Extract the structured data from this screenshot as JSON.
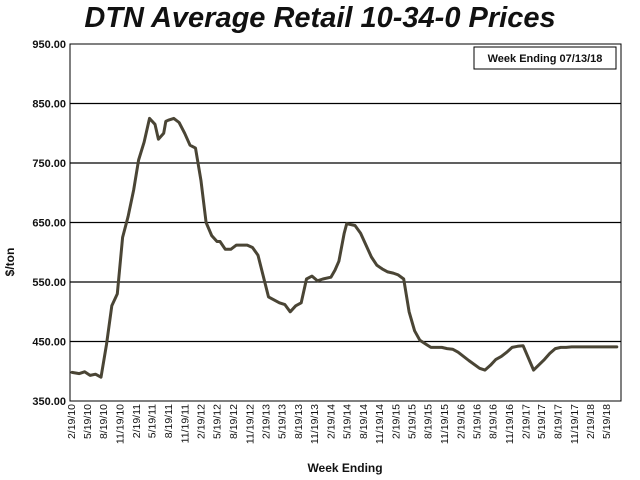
{
  "chart_data": {
    "type": "line",
    "title": "DTN Average Retail 10-34-0 Prices",
    "xlabel": "Week Ending",
    "ylabel": "$/ton",
    "annotation": "Week Ending 07/13/18",
    "ylim": [
      350,
      950
    ],
    "yticks": [
      "950.00",
      "850.00",
      "750.00",
      "650.00",
      "550.00",
      "450.00",
      "350.00"
    ],
    "grid": "horizontal",
    "colors": {
      "line": "#4a4535",
      "grid": "#000000"
    },
    "xticks": [
      "2/19/10",
      "5/19/10",
      "8/19/10",
      "11/19/10",
      "2/19/11",
      "5/19/11",
      "8/19/11",
      "11/19/11",
      "2/19/12",
      "5/19/12",
      "8/19/12",
      "11/19/12",
      "2/19/13",
      "5/19/13",
      "8/19/13",
      "11/19/13",
      "2/19/14",
      "5/19/14",
      "8/19/14",
      "11/19/14",
      "2/19/15",
      "5/19/15",
      "8/19/15",
      "11/19/15",
      "2/19/16",
      "5/19/16",
      "8/19/16",
      "11/19/16",
      "2/19/17",
      "5/19/17",
      "8/19/17",
      "11/19/17",
      "2/19/18",
      "5/19/18"
    ],
    "series": [
      {
        "x": [
          "2010-02-19",
          "2010-04-01",
          "2010-05-01",
          "2010-06-01",
          "2010-07-01",
          "2010-08-01",
          "2010-09-01",
          "2010-10-01",
          "2010-11-01",
          "2010-12-01",
          "2011-01-01",
          "2011-02-01",
          "2011-03-01",
          "2011-04-01",
          "2011-05-01",
          "2011-06-01",
          "2011-06-20",
          "2011-07-20",
          "2011-08-01",
          "2011-08-15",
          "2011-09-15",
          "2011-10-15",
          "2011-11-15",
          "2011-12-15",
          "2012-01-15",
          "2012-02-15",
          "2012-03-15",
          "2012-04-15",
          "2012-05-15",
          "2012-06-01",
          "2012-07-01",
          "2012-08-01",
          "2012-09-01",
          "2012-10-01",
          "2012-11-01",
          "2012-12-01",
          "2013-01-01",
          "2013-03-01",
          "2013-05-01",
          "2013-06-01",
          "2013-07-01",
          "2013-08-01",
          "2013-09-01",
          "2013-10-01",
          "2013-11-01",
          "2013-12-01",
          "2014-01-01",
          "2014-02-15",
          "2014-03-10",
          "2014-04-01",
          "2014-05-01",
          "2014-05-15",
          "2014-07-01",
          "2014-08-01",
          "2014-10-01",
          "2014-11-01",
          "2014-12-01",
          "2015-01-01",
          "2015-02-01",
          "2015-03-01",
          "2015-04-01",
          "2015-05-01",
          "2015-06-01",
          "2015-07-01",
          "2015-08-01",
          "2015-09-01",
          "2015-10-01",
          "2015-11-01",
          "2015-12-01",
          "2016-01-01",
          "2016-02-01",
          "2016-04-01",
          "2016-06-01",
          "2016-07-01",
          "2016-08-01",
          "2016-09-01",
          "2016-10-01",
          "2016-11-01",
          "2016-12-01",
          "2017-01-01",
          "2017-02-01",
          "2017-04-01",
          "2017-06-01",
          "2017-07-01",
          "2017-08-01",
          "2017-09-01",
          "2017-10-01",
          "2017-11-01",
          "2017-12-01",
          "2018-01-01",
          "2018-02-01",
          "2018-03-01",
          "2018-04-01",
          "2018-05-01",
          "2018-06-01",
          "2018-07-13"
        ],
        "values": [
          398,
          396,
          399,
          393,
          395,
          390,
          445,
          510,
          530,
          625,
          660,
          705,
          755,
          785,
          825,
          815,
          790,
          800,
          820,
          822,
          825,
          818,
          800,
          780,
          775,
          720,
          650,
          628,
          618,
          618,
          605,
          605,
          612,
          612,
          612,
          608,
          595,
          525,
          515,
          512,
          500,
          510,
          515,
          555,
          560,
          552,
          555,
          558,
          570,
          585,
          632,
          648,
          645,
          632,
          592,
          578,
          572,
          567,
          565,
          562,
          555,
          500,
          468,
          452,
          446,
          440,
          440,
          440,
          438,
          437,
          432,
          418,
          405,
          402,
          410,
          420,
          425,
          432,
          440,
          442,
          443,
          402,
          420,
          430,
          438,
          440,
          440,
          441,
          441,
          441,
          441,
          441,
          441,
          441,
          441,
          441
        ]
      }
    ]
  }
}
